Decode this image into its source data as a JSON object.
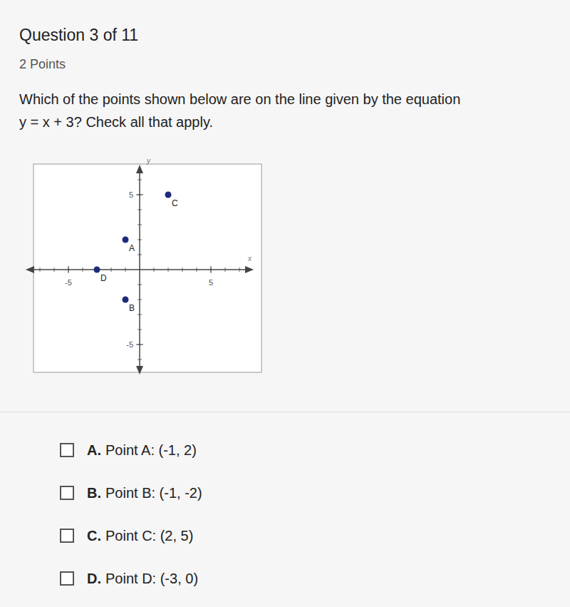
{
  "header": {
    "title": "Question 3 of 11",
    "points": "2 Points"
  },
  "question": [
    "Which of the points shown below are on the line given by the equation",
    "y = x + 3? Check all that apply."
  ],
  "chart_data": {
    "type": "scatter",
    "x": [
      -1,
      -1,
      2,
      -3
    ],
    "values": [
      2,
      -2,
      5,
      0
    ],
    "labels": [
      "A",
      "B",
      "C",
      "D"
    ],
    "color": "#1c2a7a",
    "marker": "circle",
    "xlim": [
      -8,
      8
    ],
    "ylim": [
      -7,
      7
    ],
    "xticks": [
      -5,
      5
    ],
    "yticks": [
      -5,
      5
    ],
    "x_label": "x",
    "y_label": "y",
    "grid": false
  },
  "options": [
    {
      "letter": "A.",
      "text": "Point A: (-1, 2)"
    },
    {
      "letter": "B.",
      "text": "Point B: (-1, -2)"
    },
    {
      "letter": "C.",
      "text": "Point C: (2, 5)"
    },
    {
      "letter": "D.",
      "text": "Point D: (-3, 0)"
    }
  ]
}
